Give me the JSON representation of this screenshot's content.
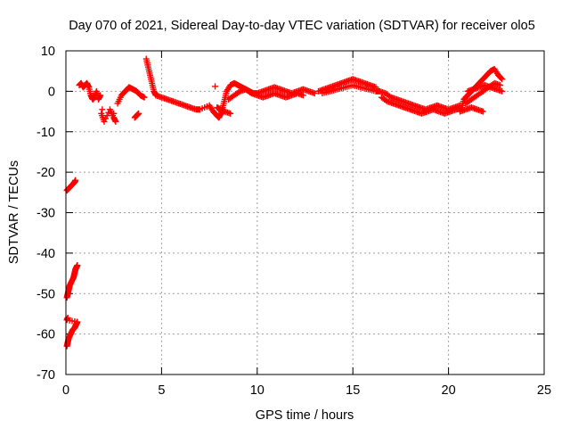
{
  "chart_data": {
    "type": "scatter",
    "title": "Day 070 of 2021, Sidereal Day-to-day VTEC variation (SDTVAR) for receiver olo5",
    "xlabel": "GPS time / hours",
    "ylabel": "SDTVAR / TECUs",
    "xlim": [
      0,
      25
    ],
    "ylim": [
      -70,
      10
    ],
    "xticks": [
      0,
      5,
      10,
      15,
      20,
      25
    ],
    "yticks": [
      -70,
      -60,
      -50,
      -40,
      -30,
      -20,
      -10,
      0,
      10
    ],
    "grid": true,
    "marker": "+",
    "color": "#ff0000",
    "series": [
      {
        "name": "SDTVAR",
        "x": [
          0.05,
          0.15,
          0.25,
          0.35,
          0.45,
          0.5,
          0.05,
          0.1,
          0.15,
          0.2,
          0.3,
          0.4,
          0.45,
          0.5,
          0.55,
          0.6,
          0.05,
          0.1,
          0.15,
          0.25,
          0.35,
          0.45,
          0.5,
          0.55,
          0.6,
          0.05,
          0.1,
          0.7,
          0.8,
          0.9,
          1.0,
          1.1,
          1.2,
          1.3,
          1.4,
          1.5,
          1.6,
          1.7,
          1.8,
          1.85,
          2.0,
          2.3,
          2.5,
          2.6,
          2.7,
          2.9,
          3.1,
          3.3,
          3.5,
          3.7,
          3.9,
          4.1,
          3.6,
          3.7,
          3.8,
          4.2,
          4.3,
          4.4,
          4.5,
          4.6,
          4.7,
          5.0,
          5.3,
          5.6,
          5.9,
          6.2,
          6.5,
          6.8,
          7.0,
          7.5,
          7.7,
          7.9,
          8.0,
          8.1,
          8.2,
          8.3,
          8.4,
          8.6,
          8.8,
          9.0,
          9.2,
          9.4,
          9.6,
          9.8,
          10.0,
          10.3,
          10.6,
          10.9,
          11.2,
          11.5,
          11.8,
          12.1,
          12.4,
          12.7,
          13.0,
          8.5,
          8.8,
          9.1,
          9.4,
          9.7,
          10.0,
          10.3,
          10.6,
          10.9,
          11.2,
          11.5,
          11.8,
          12.1,
          12.4,
          13.2,
          13.5,
          13.8,
          14.1,
          14.4,
          14.7,
          15.0,
          15.3,
          15.6,
          15.9,
          16.2,
          13.4,
          13.8,
          14.2,
          14.6,
          15.0,
          15.4,
          15.8,
          16.2,
          16.4,
          16.7,
          17.0,
          17.3,
          17.6,
          17.9,
          18.2,
          18.5,
          18.8,
          19.1,
          19.4,
          19.7,
          20.0,
          20.3,
          20.6,
          16.5,
          16.8,
          17.1,
          17.4,
          17.7,
          18.0,
          18.3,
          18.6,
          18.9,
          19.2,
          19.5,
          19.8,
          20.1,
          20.4,
          20.7,
          20.8,
          21.0,
          21.2,
          21.4,
          21.6,
          21.8,
          22.0,
          22.2,
          22.4,
          22.6,
          22.8,
          20.9,
          21.2,
          21.5,
          21.8,
          22.1,
          22.4,
          22.7,
          21.0,
          21.3,
          21.6,
          21.9,
          22.2,
          22.5,
          22.8,
          20.6,
          20.9,
          21.2,
          21.5,
          21.8,
          7.9,
          8.1,
          8.3,
          8.6
        ],
        "y": [
          -24.5,
          -24,
          -23.5,
          -23,
          -22.5,
          -22,
          -51,
          -50,
          -49,
          -48,
          -47,
          -46,
          -45,
          -44,
          -43.5,
          -43,
          -63,
          -62,
          -61,
          -60,
          -59,
          -58.5,
          -58,
          -57.5,
          -57,
          -56.5,
          -56,
          1.5,
          2,
          1,
          1.5,
          2,
          1,
          -1,
          -2,
          -1.5,
          0,
          -2,
          -1,
          -5.5,
          -7.5,
          -4.5,
          -6.5,
          -7.5,
          -3,
          -1,
          0,
          1,
          0.5,
          0,
          -1,
          -1.5,
          -6.5,
          -6,
          -5.5,
          8,
          6,
          4,
          2,
          0,
          -1,
          -1.5,
          -2,
          -2.5,
          -3,
          -3.5,
          -4,
          -4.5,
          -4.5,
          -3.5,
          -5,
          -6,
          -6.5,
          -5.5,
          -4,
          -2,
          0,
          1.5,
          2,
          1.5,
          1,
          0.5,
          0,
          -0.5,
          -0.5,
          0,
          0.5,
          1,
          0.5,
          0,
          -0.5,
          0,
          0.5,
          0,
          -0.5,
          -2,
          -1,
          0,
          0.5,
          -0.5,
          -1,
          -1.5,
          -1,
          -0.5,
          -1,
          -1.5,
          -1,
          -0.5,
          -1,
          0,
          0.5,
          1,
          1.5,
          2,
          2.5,
          3,
          2.5,
          2,
          1.5,
          1,
          -0.5,
          0,
          0.5,
          1,
          1.5,
          1,
          0.5,
          0,
          0,
          -0.5,
          -1.5,
          -2,
          -2.5,
          -3,
          -3.5,
          -4,
          -4.5,
          -4,
          -3.5,
          -4,
          -4.5,
          -4,
          -3.5,
          -1.5,
          -2.5,
          -3,
          -3.5,
          -4,
          -4.5,
          -5,
          -5.5,
          -5,
          -4.5,
          -5,
          -5.5,
          -5,
          -4.5,
          -4,
          -2,
          -1,
          0,
          1,
          2,
          3,
          4,
          5,
          5.5,
          4,
          3,
          -3,
          -2,
          -1,
          0,
          1,
          2,
          1.5,
          0,
          0.5,
          1,
          1.5,
          1,
          0.5,
          0,
          -5,
          -4.5,
          -4,
          -4.5,
          -5,
          -4,
          -4.5,
          -5,
          -5.5
        ]
      }
    ],
    "annotations": [
      {
        "text": "+",
        "x": 1.9,
        "y": -4.5
      },
      {
        "text": "+",
        "x": 2.5,
        "y": -5.5
      },
      {
        "text": "+",
        "x": 7.8,
        "y": 1.2
      }
    ]
  }
}
